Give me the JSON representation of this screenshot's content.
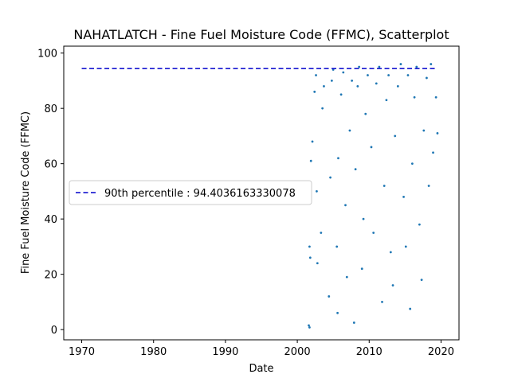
{
  "chart_data": {
    "type": "scatter",
    "title": "NAHATLATCH - Fine Fuel Moisture Code (FFMC), Scatterplot",
    "xlabel": "Date",
    "ylabel": "Fine Fuel Moisture Code (FFMC)",
    "xlim": [
      1967.5,
      2022.5
    ],
    "ylim": [
      -3.7,
      102.5
    ],
    "xticks": [
      1970,
      1980,
      1990,
      2000,
      2010,
      2020
    ],
    "yticks": [
      0,
      20,
      40,
      60,
      80,
      100
    ],
    "grid": false,
    "legend": {
      "placement": "center-left",
      "entries": [
        {
          "label": "90th percentile : 94.4036163330078",
          "style": "dashed",
          "color": "#0000cc"
        }
      ]
    },
    "percentile_line": {
      "name": "90th percentile : 94.4036163330078",
      "value": 94.4036163330078,
      "x_range": [
        1970,
        2019.5
      ]
    },
    "point_color": "#1f77b4",
    "series": [
      {
        "name": "FFMC",
        "points": [
          [
            2001.6,
            1.5
          ],
          [
            2001.7,
            0.8
          ],
          [
            2001.8,
            26
          ],
          [
            2001.7,
            30
          ],
          [
            2001.9,
            61
          ],
          [
            2002.1,
            68
          ],
          [
            2002.4,
            86
          ],
          [
            2002.6,
            92
          ],
          [
            2002.7,
            50
          ],
          [
            2002.8,
            24
          ],
          [
            2003.3,
            35
          ],
          [
            2003.5,
            80
          ],
          [
            2003.7,
            88
          ],
          [
            2004.4,
            12
          ],
          [
            2004.6,
            55
          ],
          [
            2004.8,
            90
          ],
          [
            2005.0,
            94
          ],
          [
            2005.5,
            30
          ],
          [
            2005.6,
            6
          ],
          [
            2005.7,
            62
          ],
          [
            2006.1,
            85
          ],
          [
            2006.4,
            93
          ],
          [
            2006.7,
            45
          ],
          [
            2006.9,
            19
          ],
          [
            2007.3,
            72
          ],
          [
            2007.6,
            90
          ],
          [
            2007.9,
            2.5
          ],
          [
            2008.1,
            58
          ],
          [
            2008.4,
            88
          ],
          [
            2008.6,
            95
          ],
          [
            2009.0,
            22
          ],
          [
            2009.2,
            40
          ],
          [
            2009.5,
            78
          ],
          [
            2009.8,
            92
          ],
          [
            2010.3,
            66
          ],
          [
            2010.6,
            35
          ],
          [
            2011.0,
            89
          ],
          [
            2011.4,
            95
          ],
          [
            2011.8,
            10
          ],
          [
            2012.1,
            52
          ],
          [
            2012.4,
            83
          ],
          [
            2012.7,
            92
          ],
          [
            2013.0,
            28
          ],
          [
            2013.3,
            16
          ],
          [
            2013.6,
            70
          ],
          [
            2014.0,
            88
          ],
          [
            2014.4,
            96
          ],
          [
            2014.8,
            48
          ],
          [
            2015.1,
            30
          ],
          [
            2015.4,
            92
          ],
          [
            2015.7,
            7.5
          ],
          [
            2016.0,
            60
          ],
          [
            2016.3,
            84
          ],
          [
            2016.6,
            95
          ],
          [
            2017.0,
            38
          ],
          [
            2017.3,
            18
          ],
          [
            2017.6,
            72
          ],
          [
            2018.0,
            91
          ],
          [
            2018.3,
            52
          ],
          [
            2018.6,
            96
          ],
          [
            2018.9,
            64
          ],
          [
            2019.3,
            84
          ],
          [
            2019.5,
            71
          ]
        ]
      }
    ]
  }
}
